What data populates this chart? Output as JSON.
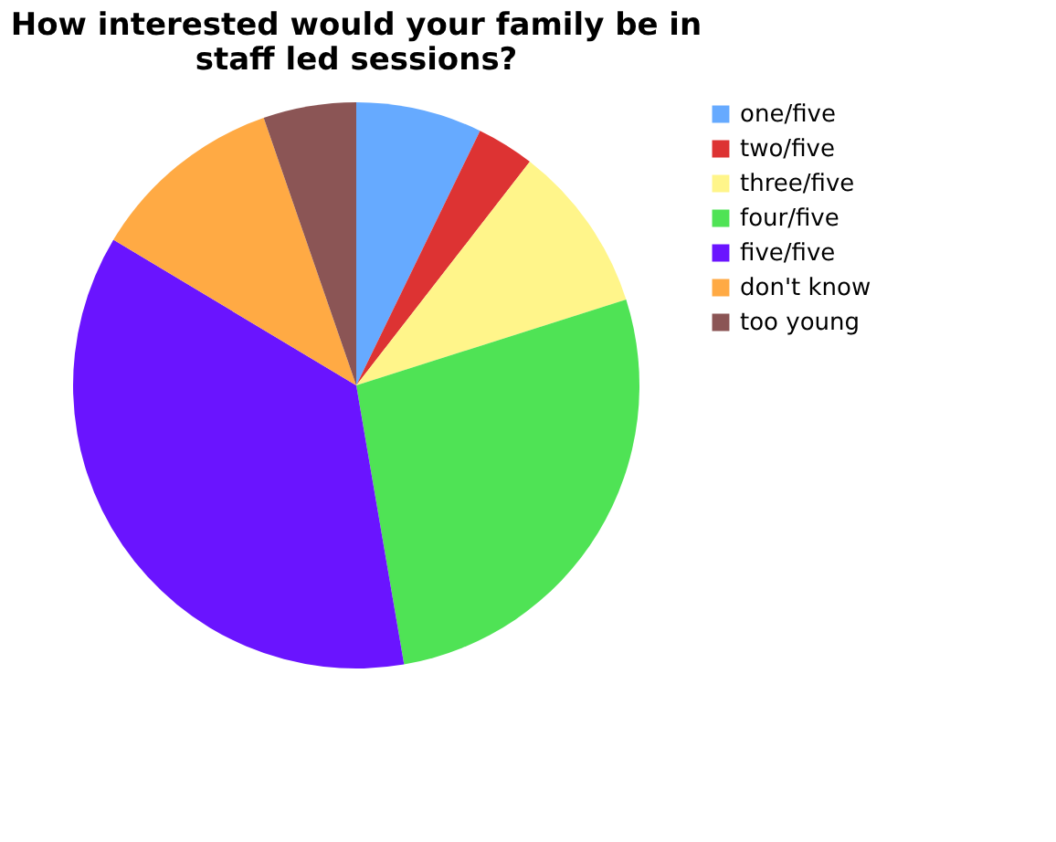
{
  "chart_data": {
    "type": "pie",
    "title": "How interested would your family be in staff led sessions?",
    "categories": [
      "one/five",
      "two/five",
      "three/five",
      "four/five",
      "five/five",
      "don't know",
      "too young"
    ],
    "values": [
      7.2,
      3.3,
      9.6,
      27.2,
      36.3,
      11.1,
      5.3
    ],
    "colors": [
      "#66aaff",
      "#dd3333",
      "#fff58a",
      "#4fe355",
      "#6a14ff",
      "#ffaa44",
      "#8b5555"
    ],
    "legend": "right"
  }
}
